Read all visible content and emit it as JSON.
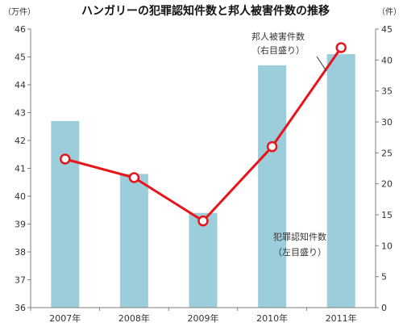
{
  "chart_data": {
    "type": "bar",
    "title": "ハンガリーの犯罪認知件数と邦人被害件数の推移",
    "categories": [
      "2007年",
      "2008年",
      "2009年",
      "2010年",
      "2011年"
    ],
    "left_axis": {
      "unit": "（万件）",
      "ylim": [
        36,
        46
      ],
      "ticks": [
        36,
        37,
        38,
        39,
        40,
        41,
        42,
        43,
        44,
        45,
        46
      ]
    },
    "right_axis": {
      "unit": "（件）",
      "ylim": [
        0,
        45
      ],
      "ticks": [
        0,
        5,
        10,
        15,
        20,
        25,
        30,
        35,
        40,
        45
      ]
    },
    "series": [
      {
        "name": "犯罪認知件数",
        "type": "bar",
        "axis": "left",
        "color": "#9ccddb",
        "values": [
          42.7,
          40.8,
          39.4,
          44.7,
          45.1
        ]
      },
      {
        "name": "邦人被害件数",
        "type": "line",
        "axis": "right",
        "color": "#e8141c",
        "values": [
          24,
          21,
          14,
          26,
          42
        ]
      }
    ],
    "annotations": {
      "line_label": [
        "邦人被害件数",
        "（右目盛り）"
      ],
      "bar_label": [
        "犯罪認知件数",
        "（左目盛り）"
      ]
    },
    "grid": false,
    "legend": "none"
  }
}
